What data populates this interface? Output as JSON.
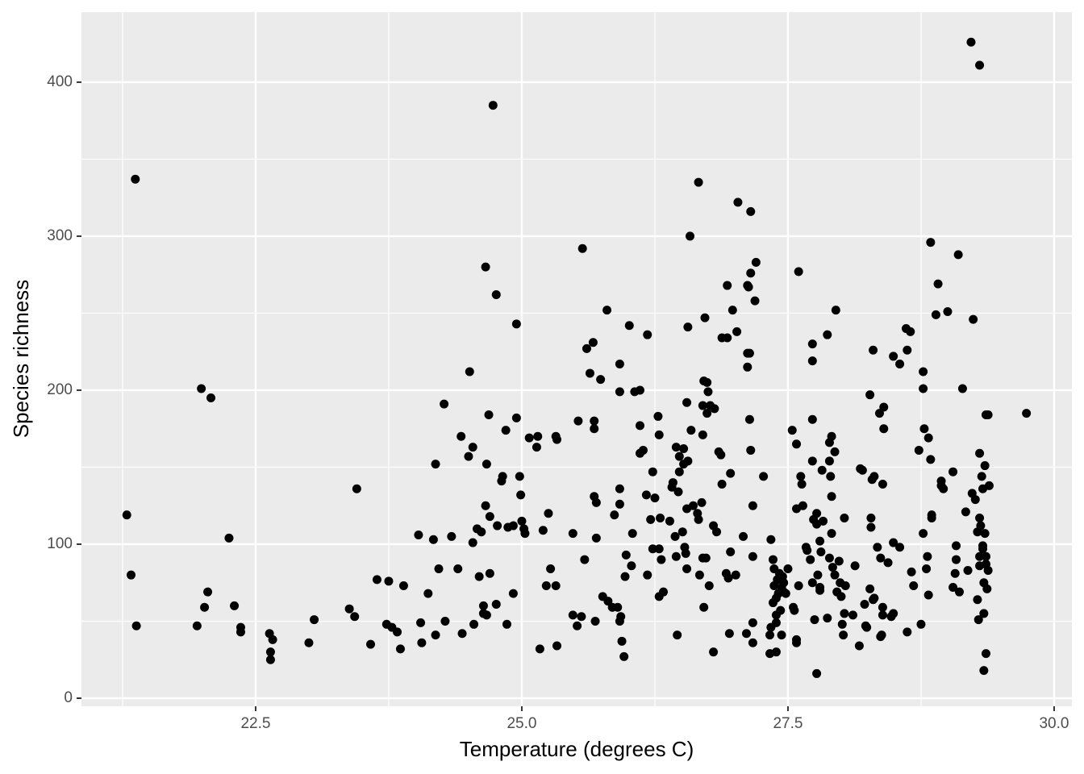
{
  "chart_data": {
    "type": "scatter",
    "x_label": "Temperature (degrees C)",
    "y_label": "Species richness",
    "color": "#000000",
    "grid": true,
    "xlim": [
      20.864,
      30.167
    ],
    "ylim": [
      -5.24,
      445.5
    ],
    "xticks": [
      22.5,
      {
        "value": 25,
        "label": "25.0"
      },
      27.5,
      {
        "value": 30,
        "label": "30.0"
      }
    ],
    "yticks": [
      0,
      100,
      200,
      300,
      400
    ],
    "x_minor_grid": [
      21.25,
      23.75,
      26.25,
      28.75
    ],
    "y_minor_grid": [
      50,
      150,
      250,
      350
    ],
    "x": [
      21.29,
      21.33,
      21.37,
      21.38,
      21.95,
      21.99,
      22.02,
      22.05,
      22.08,
      22.25,
      22.3,
      22.36,
      22.36,
      22.63,
      22.64,
      22.64,
      22.66,
      23.0,
      23.05,
      23.38,
      23.43,
      23.45,
      23.58,
      23.64,
      23.73,
      23.75,
      23.78,
      23.83,
      23.86,
      23.89,
      24.03,
      24.05,
      24.06,
      24.12,
      24.17,
      24.19,
      24.19,
      24.22,
      24.27,
      24.28,
      24.34,
      24.4,
      24.43,
      24.44,
      24.5,
      24.51,
      24.54,
      24.54,
      24.55,
      24.58,
      24.6,
      24.62,
      24.64,
      24.64,
      24.66,
      24.66,
      24.67,
      24.67,
      24.69,
      24.7,
      24.7,
      24.73,
      24.76,
      24.76,
      24.77,
      24.81,
      24.82,
      24.85,
      24.86,
      24.87,
      24.92,
      24.92,
      24.95,
      24.95,
      24.98,
      24.99,
      25.0,
      25.02,
      25.03,
      25.07,
      25.14,
      25.15,
      25.17,
      25.2,
      25.23,
      25.25,
      25.27,
      25.32,
      25.33,
      25.32,
      25.33,
      25.48,
      25.48,
      25.52,
      25.53,
      25.56,
      25.57,
      25.59,
      25.61,
      25.64,
      25.67,
      25.68,
      25.68,
      25.68,
      25.69,
      25.7,
      25.7,
      25.74,
      25.76,
      25.8,
      25.81,
      25.85,
      25.87,
      25.9,
      25.92,
      25.92,
      25.92,
      25.92,
      25.92,
      25.93,
      25.94,
      25.96,
      25.98,
      25.97,
      26.01,
      26.03,
      26.04,
      26.06,
      26.11,
      26.11,
      26.11,
      26.14,
      26.17,
      26.18,
      26.18,
      26.21,
      26.23,
      26.23,
      26.25,
      26.28,
      26.29,
      26.29,
      26.29,
      26.3,
      26.31,
      26.33,
      26.39,
      26.41,
      26.42,
      26.44,
      26.45,
      26.45,
      26.46,
      26.47,
      26.48,
      26.48,
      26.51,
      26.52,
      26.52,
      26.53,
      26.54,
      26.55,
      26.55,
      26.55,
      26.56,
      26.56,
      26.58,
      26.59,
      26.61,
      26.65,
      26.66,
      26.66,
      26.67,
      26.69,
      26.7,
      26.7,
      26.7,
      26.71,
      26.71,
      26.72,
      26.73,
      26.74,
      26.74,
      26.75,
      26.76,
      26.77,
      26.8,
      26.8,
      26.81,
      26.83,
      26.85,
      26.87,
      26.88,
      26.88,
      26.92,
      26.93,
      26.93,
      26.94,
      26.95,
      26.96,
      26.96,
      26.98,
      27.01,
      27.02,
      27.03,
      27.08,
      27.11,
      27.12,
      27.12,
      27.12,
      27.13,
      27.14,
      27.14,
      27.15,
      27.15,
      27.15,
      27.17,
      27.17,
      27.17,
      27.17,
      27.19,
      27.2,
      27.27,
      27.33,
      27.33,
      27.34,
      27.34,
      27.36,
      27.36,
      27.37,
      27.37,
      27.39,
      27.39,
      27.39,
      27.39,
      27.4,
      27.41,
      27.42,
      27.43,
      27.44,
      27.44,
      27.45,
      27.46,
      27.46,
      27.48,
      27.5,
      27.54,
      27.55,
      27.56,
      27.58,
      27.58,
      27.58,
      27.58,
      27.6,
      27.6,
      27.62,
      27.63,
      27.64,
      27.67,
      27.68,
      27.71,
      27.73,
      27.73,
      27.73,
      27.73,
      27.73,
      27.74,
      27.75,
      27.77,
      27.77,
      27.77,
      27.78,
      27.8,
      27.8,
      27.8,
      27.81,
      27.82,
      27.83,
      27.87,
      27.87,
      27.89,
      27.89,
      27.89,
      27.9,
      27.91,
      27.91,
      27.91,
      27.92,
      27.94,
      27.94,
      27.95,
      27.96,
      27.98,
      27.99,
      28.0,
      28.01,
      28.02,
      28.03,
      28.03,
      28.04,
      28.11,
      28.13,
      28.17,
      28.18,
      28.2,
      28.22,
      28.23,
      28.24,
      28.27,
      28.27,
      28.28,
      28.28,
      28.29,
      28.3,
      28.3,
      28.31,
      28.31,
      28.34,
      28.36,
      28.37,
      28.37,
      28.38,
      28.39,
      28.4,
      28.4,
      28.39,
      28.39,
      28.44,
      28.47,
      28.49,
      28.49,
      28.49,
      28.55,
      28.55,
      28.61,
      28.62,
      28.62,
      28.65,
      28.66,
      28.68,
      28.73,
      28.75,
      28.77,
      28.77,
      28.77,
      28.78,
      28.8,
      28.81,
      28.82,
      28.82,
      28.84,
      28.84,
      28.85,
      28.85,
      28.89,
      28.91,
      28.94,
      28.94,
      28.96,
      29.0,
      29.05,
      29.05,
      29.07,
      29.08,
      29.08,
      29.1,
      29.11,
      29.14,
      29.17,
      29.19,
      29.22,
      29.3,
      29.23,
      29.24,
      29.26,
      29.28,
      29.28,
      29.29,
      29.3,
      29.3,
      29.3,
      29.3,
      29.31,
      29.32,
      29.33,
      29.33,
      29.33,
      29.34,
      29.34,
      29.34,
      29.35,
      29.35,
      29.36,
      29.36,
      29.36,
      29.36,
      29.37,
      29.38,
      29.38,
      29.39,
      29.74
    ],
    "values": [
      119,
      80,
      337,
      47,
      47,
      201,
      59,
      69,
      195,
      104,
      60,
      46,
      43,
      42,
      25,
      30,
      38,
      36,
      51,
      58,
      53,
      136,
      35,
      77,
      48,
      76,
      46,
      43,
      32,
      73,
      106,
      49,
      36,
      68,
      103,
      152,
      41,
      84,
      191,
      50,
      105,
      84,
      170,
      42,
      157,
      212,
      163,
      101,
      48,
      110,
      79,
      108,
      60,
      55,
      280,
      125,
      152,
      54,
      184,
      118,
      81,
      385,
      262,
      61,
      112,
      141,
      144,
      174,
      48,
      111,
      68,
      112,
      243,
      182,
      144,
      132,
      115,
      110,
      107,
      169,
      163,
      170,
      32,
      109,
      73,
      120,
      84,
      170,
      168,
      73,
      34,
      107,
      54,
      47,
      180,
      53,
      292,
      90,
      227,
      211,
      231,
      180,
      175,
      131,
      50,
      127,
      104,
      207,
      66,
      252,
      63,
      59,
      119,
      59,
      126,
      136,
      199,
      217,
      50,
      53,
      37,
      27,
      93,
      79,
      242,
      86,
      107,
      199,
      200,
      177,
      159,
      161,
      132,
      236,
      80,
      116,
      147,
      97,
      130,
      183,
      171,
      97,
      66,
      117,
      90,
      69,
      115,
      137,
      140,
      105,
      92,
      163,
      41,
      134,
      157,
      147,
      108,
      162,
      152,
      98,
      94,
      84,
      123,
      192,
      154,
      241,
      300,
      174,
      125,
      120,
      335,
      116,
      80,
      127,
      190,
      171,
      91,
      59,
      206,
      247,
      91,
      185,
      205,
      199,
      73,
      190,
      112,
      30,
      188,
      108,
      160,
      158,
      139,
      234,
      81,
      268,
      234,
      78,
      42,
      146,
      95,
      252,
      80,
      238,
      322,
      105,
      42,
      268,
      224,
      215,
      267,
      224,
      181,
      316,
      276,
      161,
      36,
      125,
      49,
      92,
      258,
      283,
      144,
      41,
      29,
      46,
      103,
      62,
      90,
      84,
      73,
      49,
      30,
      65,
      54,
      77,
      68,
      81,
      57,
      72,
      41,
      79,
      69,
      75,
      68,
      84,
      174,
      59,
      57,
      165,
      123,
      38,
      36,
      277,
      73,
      144,
      139,
      125,
      98,
      96,
      90,
      219,
      181,
      154,
      75,
      230,
      116,
      51,
      16,
      120,
      113,
      80,
      102,
      72,
      70,
      95,
      148,
      115,
      52,
      236,
      166,
      91,
      154,
      144,
      170,
      131,
      107,
      85,
      160,
      80,
      252,
      69,
      89,
      75,
      66,
      48,
      41,
      117,
      55,
      73,
      54,
      86,
      34,
      149,
      148,
      61,
      47,
      46,
      197,
      71,
      117,
      111,
      142,
      64,
      226,
      144,
      65,
      98,
      185,
      91,
      40,
      41,
      139,
      175,
      189,
      54,
      59,
      88,
      53,
      222,
      101,
      55,
      217,
      98,
      240,
      226,
      43,
      238,
      82,
      73,
      161,
      48,
      107,
      212,
      201,
      175,
      84,
      92,
      67,
      169,
      296,
      155,
      119,
      117,
      249,
      269,
      138,
      141,
      136,
      251,
      147,
      72,
      81,
      90,
      99,
      288,
      69,
      201,
      121,
      83,
      426,
      411,
      133,
      246,
      129,
      64,
      108,
      51,
      159,
      117,
      92,
      86,
      112,
      144,
      99,
      136,
      97,
      75,
      55,
      18,
      107,
      151,
      92,
      87,
      184,
      29,
      71,
      83,
      184,
      138,
      185
    ]
  }
}
